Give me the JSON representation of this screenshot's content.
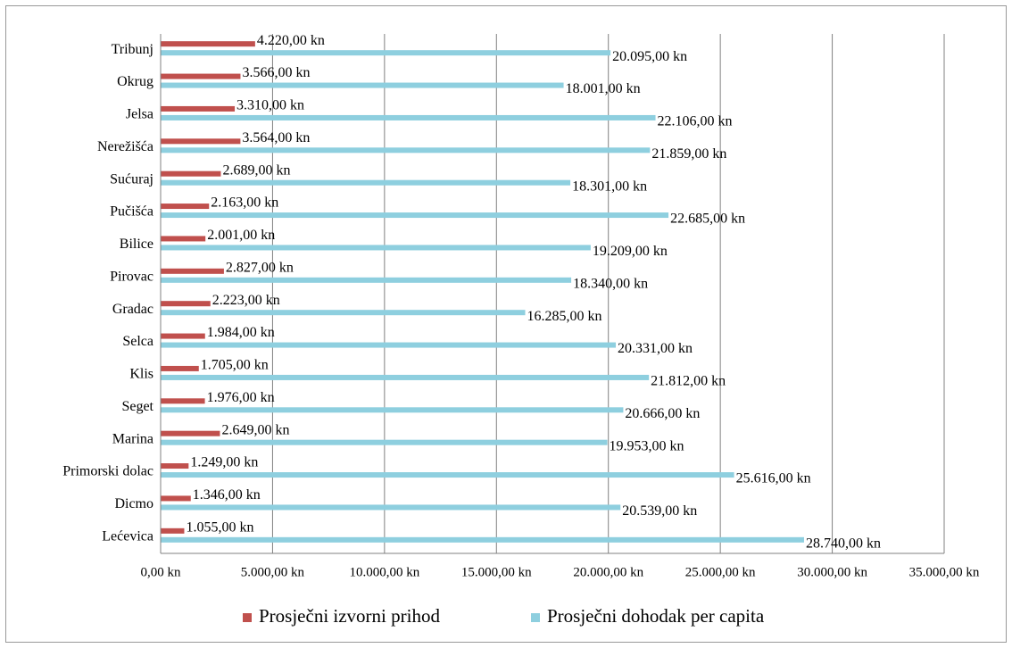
{
  "chart_data": {
    "type": "hbar",
    "categories": [
      "Tribunj",
      "Okrug",
      "Jelsa",
      "Nerežišća",
      "Sućuraj",
      "Pučišća",
      "Bilice",
      "Pirovac",
      "Gradac",
      "Selca",
      "Klis",
      "Seget",
      "Marina",
      "Primorski dolac",
      "Dicmo",
      "Lećevica"
    ],
    "series": [
      {
        "name": "Prosječni izvorni prihod",
        "color": "#c0504d",
        "values": [
          4220,
          3566,
          3310,
          3564,
          2689,
          2163,
          2001,
          2827,
          2223,
          1984,
          1705,
          1976,
          2649,
          1249,
          1346,
          1055
        ],
        "value_labels": [
          "4.220,00 kn",
          "3.566,00 kn",
          "3.310,00 kn",
          "3.564,00 kn",
          "2.689,00 kn",
          "2.163,00 kn",
          "2.001,00 kn",
          "2.827,00 kn",
          "2.223,00 kn",
          "1.984,00 kn",
          "1.705,00 kn",
          "1.976,00 kn",
          "2.649,00 kn",
          "1.249,00 kn",
          "1.346,00 kn",
          "1.055,00 kn"
        ]
      },
      {
        "name": "Prosječni dohodak per capita",
        "color": "#8ecfdf",
        "values": [
          20095,
          18001,
          22106,
          21859,
          18301,
          22685,
          19209,
          18340,
          16285,
          20331,
          21812,
          20666,
          19953,
          25616,
          20539,
          28740
        ],
        "value_labels": [
          "20.095,00 kn",
          "18.001,00 kn",
          "22.106,00 kn",
          "21.859,00 kn",
          "18.301,00 kn",
          "22.685,00 kn",
          "19.209,00 kn",
          "18.340,00 kn",
          "16.285,00 kn",
          "20.331,00 kn",
          "21.812,00 kn",
          "20.666,00 kn",
          "19.953,00 kn",
          "25.616,00 kn",
          "20.539,00 kn",
          "28.740,00 kn"
        ]
      }
    ],
    "xlim": [
      0,
      35000
    ],
    "xticks": [
      {
        "value": 0,
        "label": "0,00 kn"
      },
      {
        "value": 5000,
        "label": "5.000,00 kn"
      },
      {
        "value": 10000,
        "label": "10.000,00 kn"
      },
      {
        "value": 15000,
        "label": "15.000,00 kn"
      },
      {
        "value": 20000,
        "label": "20.000,00 kn"
      },
      {
        "value": 25000,
        "label": "25.000,00 kn"
      },
      {
        "value": 30000,
        "label": "30.000,00 kn"
      },
      {
        "value": 35000,
        "label": "35.000,00 kn"
      }
    ],
    "grid": true,
    "legend": "bottom"
  }
}
